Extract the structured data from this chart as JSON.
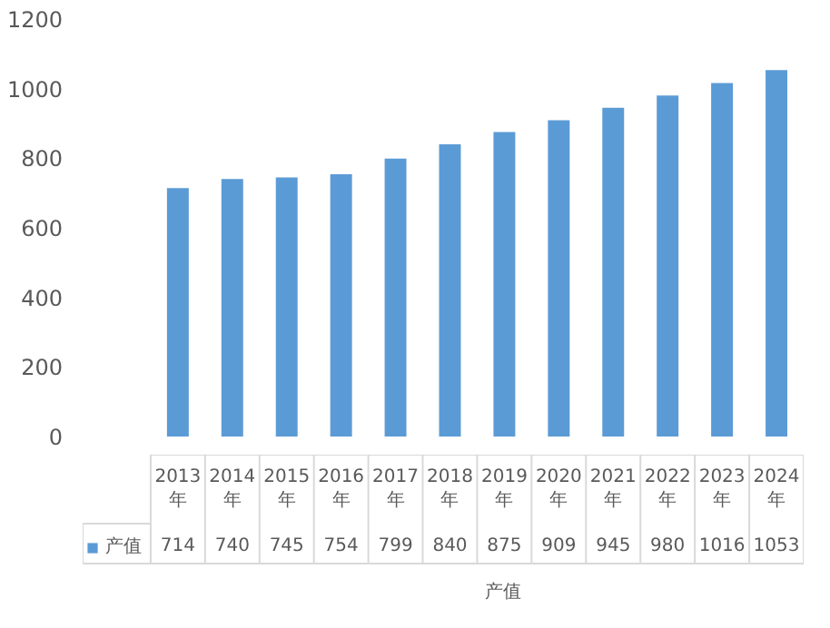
{
  "chart_data": {
    "type": "bar",
    "categories": [
      "2013年",
      "2014年",
      "2015年",
      "2016年",
      "2017年",
      "2018年",
      "2019年",
      "2020年",
      "2021年",
      "2022年",
      "2023年",
      "2024年"
    ],
    "series": [
      {
        "name": "产值",
        "color": "#5b9bd5",
        "values": [
          714,
          740,
          745,
          754,
          799,
          840,
          875,
          909,
          945,
          980,
          1016,
          1053
        ]
      }
    ],
    "ylim": [
      0,
      1200
    ],
    "yticks": [
      0,
      200,
      400,
      600,
      800,
      1000,
      1200
    ],
    "grid": false,
    "data_labels": true,
    "legend": "bottom"
  }
}
